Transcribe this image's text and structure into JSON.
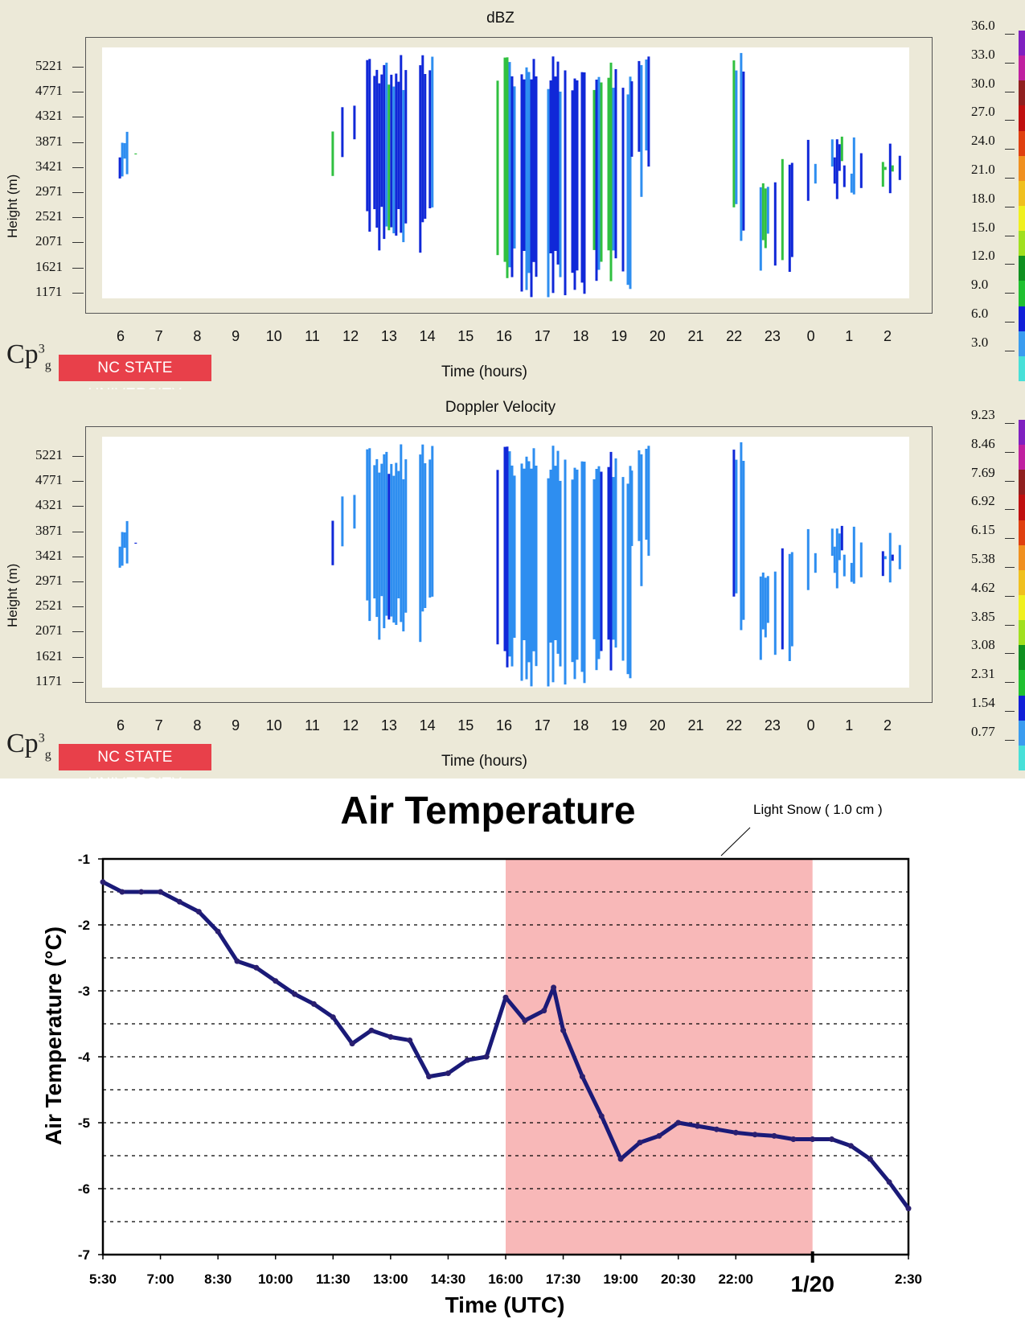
{
  "panels": [
    {
      "title": "dBZ",
      "ylabel": "Height (m)",
      "xlabel": "Time (hours)",
      "yticks": [
        "5221",
        "4771",
        "4321",
        "3871",
        "3421",
        "2971",
        "2521",
        "2071",
        "1621",
        "1171"
      ],
      "xticks": [
        "6",
        "7",
        "8",
        "9",
        "10",
        "11",
        "12",
        "13",
        "14",
        "15",
        "16",
        "17",
        "18",
        "19",
        "20",
        "21",
        "22",
        "23",
        "0",
        "1",
        "2"
      ],
      "colorbar_labels": [
        "36.0",
        "33.0",
        "30.0",
        "27.0",
        "24.0",
        "21.0",
        "18.0",
        "15.0",
        "12.0",
        "9.0",
        "6.0",
        "3.0"
      ],
      "logo_text": "Cp3g",
      "badge_text": "NC STATE UNIVERSITY"
    },
    {
      "title": "Doppler Velocity",
      "ylabel": "Height (m)",
      "xlabel": "Time (hours)",
      "yticks": [
        "5221",
        "4771",
        "4321",
        "3871",
        "3421",
        "2971",
        "2521",
        "2071",
        "1621",
        "1171"
      ],
      "xticks": [
        "6",
        "7",
        "8",
        "9",
        "10",
        "11",
        "12",
        "13",
        "14",
        "15",
        "16",
        "17",
        "18",
        "19",
        "20",
        "21",
        "22",
        "23",
        "0",
        "1",
        "2"
      ],
      "colorbar_labels": [
        "9.23",
        "8.46",
        "7.69",
        "6.92",
        "6.15",
        "5.38",
        "4.62",
        "3.85",
        "3.08",
        "2.31",
        "1.54",
        "0.77"
      ],
      "logo_text": "Cp3g",
      "badge_text": "NC STATE UNIVERSITY"
    }
  ],
  "colorbar_colors": [
    "#48e0d8",
    "#3a9cf0",
    "#1020d8",
    "#20c030",
    "#109020",
    "#a0e020",
    "#f0f020",
    "#f0c020",
    "#f09020",
    "#e04010",
    "#c01010",
    "#902020",
    "#c020a0",
    "#8020c0"
  ],
  "radar_colors": {
    "light_blue": "#2e8ef0",
    "blue": "#1028d8",
    "green": "#30c040"
  },
  "chart_data": [
    {
      "type": "heatmap",
      "title": "dBZ",
      "xlabel": "Time (hours)",
      "ylabel": "Height (m)",
      "x_ticks": [
        "6",
        "7",
        "8",
        "9",
        "10",
        "11",
        "12",
        "13",
        "14",
        "15",
        "16",
        "17",
        "18",
        "19",
        "20",
        "21",
        "22",
        "23",
        "0",
        "1",
        "2"
      ],
      "y_ticks": [
        5221,
        4771,
        4321,
        3871,
        3421,
        2971,
        2521,
        2071,
        1621,
        1171
      ],
      "colorbar": [
        36.0,
        33.0,
        30.0,
        27.0,
        24.0,
        21.0,
        18.0,
        15.0,
        12.0,
        9.0,
        6.0,
        3.0
      ]
    },
    {
      "type": "heatmap",
      "title": "Doppler Velocity",
      "xlabel": "Time (hours)",
      "ylabel": "Height (m)",
      "x_ticks": [
        "6",
        "7",
        "8",
        "9",
        "10",
        "11",
        "12",
        "13",
        "14",
        "15",
        "16",
        "17",
        "18",
        "19",
        "20",
        "21",
        "22",
        "23",
        "0",
        "1",
        "2"
      ],
      "y_ticks": [
        5221,
        4771,
        4321,
        3871,
        3421,
        2971,
        2521,
        2071,
        1621,
        1171
      ],
      "colorbar": [
        9.23,
        8.46,
        7.69,
        6.92,
        6.15,
        5.38,
        4.62,
        3.85,
        3.08,
        2.31,
        1.54,
        0.77
      ]
    },
    {
      "type": "line",
      "title": "Air Temperature",
      "xlabel": "Time (UTC)",
      "ylabel": "Air Temperature (°C)",
      "ylim": [
        -7,
        -1
      ],
      "yticks": [
        "-1",
        "-2",
        "-3",
        "-4",
        "-5",
        "-6",
        "-7"
      ],
      "xticks": [
        "5:30",
        "7:00",
        "8:30",
        "10:00",
        "11:30",
        "13:00",
        "14:30",
        "16:00",
        "17:30",
        "19:00",
        "20:30",
        "22:00",
        "1/20",
        "2:30"
      ],
      "x_hours": [
        5.5,
        6.0,
        6.5,
        7.0,
        7.5,
        8.0,
        8.5,
        9.0,
        9.5,
        10.0,
        10.5,
        11.0,
        11.5,
        12.0,
        12.5,
        13.0,
        13.5,
        14.0,
        14.5,
        15.0,
        15.5,
        16.0,
        16.5,
        17.0,
        17.25,
        17.5,
        18.0,
        18.5,
        19.0,
        19.5,
        20.0,
        20.5,
        21.0,
        21.5,
        22.0,
        22.5,
        23.0,
        23.5,
        24.0,
        24.5,
        25.0,
        25.5,
        26.0,
        26.5
      ],
      "series": [
        {
          "values": [
            -1.35,
            -1.5,
            -1.5,
            -1.5,
            -1.65,
            -1.8,
            -2.1,
            -2.55,
            -2.65,
            -2.85,
            -3.05,
            -3.2,
            -3.4,
            -3.8,
            -3.6,
            -3.7,
            -3.75,
            -4.3,
            -4.25,
            -4.05,
            -4.0,
            -3.1,
            -3.45,
            -3.3,
            -2.95,
            -3.6,
            -4.3,
            -4.9,
            -5.55,
            -5.3,
            -5.2,
            -5.0,
            -5.05,
            -5.1,
            -5.15,
            -5.18,
            -5.2,
            -5.25,
            -5.25,
            -5.25,
            -5.35,
            -5.55,
            -5.9,
            -6.3
          ]
        }
      ],
      "shaded_region": {
        "x_start": 16.0,
        "x_end": 24.0,
        "label": "Light Snow ( 1.0 cm )"
      },
      "grid": "horizontal dashed"
    }
  ]
}
